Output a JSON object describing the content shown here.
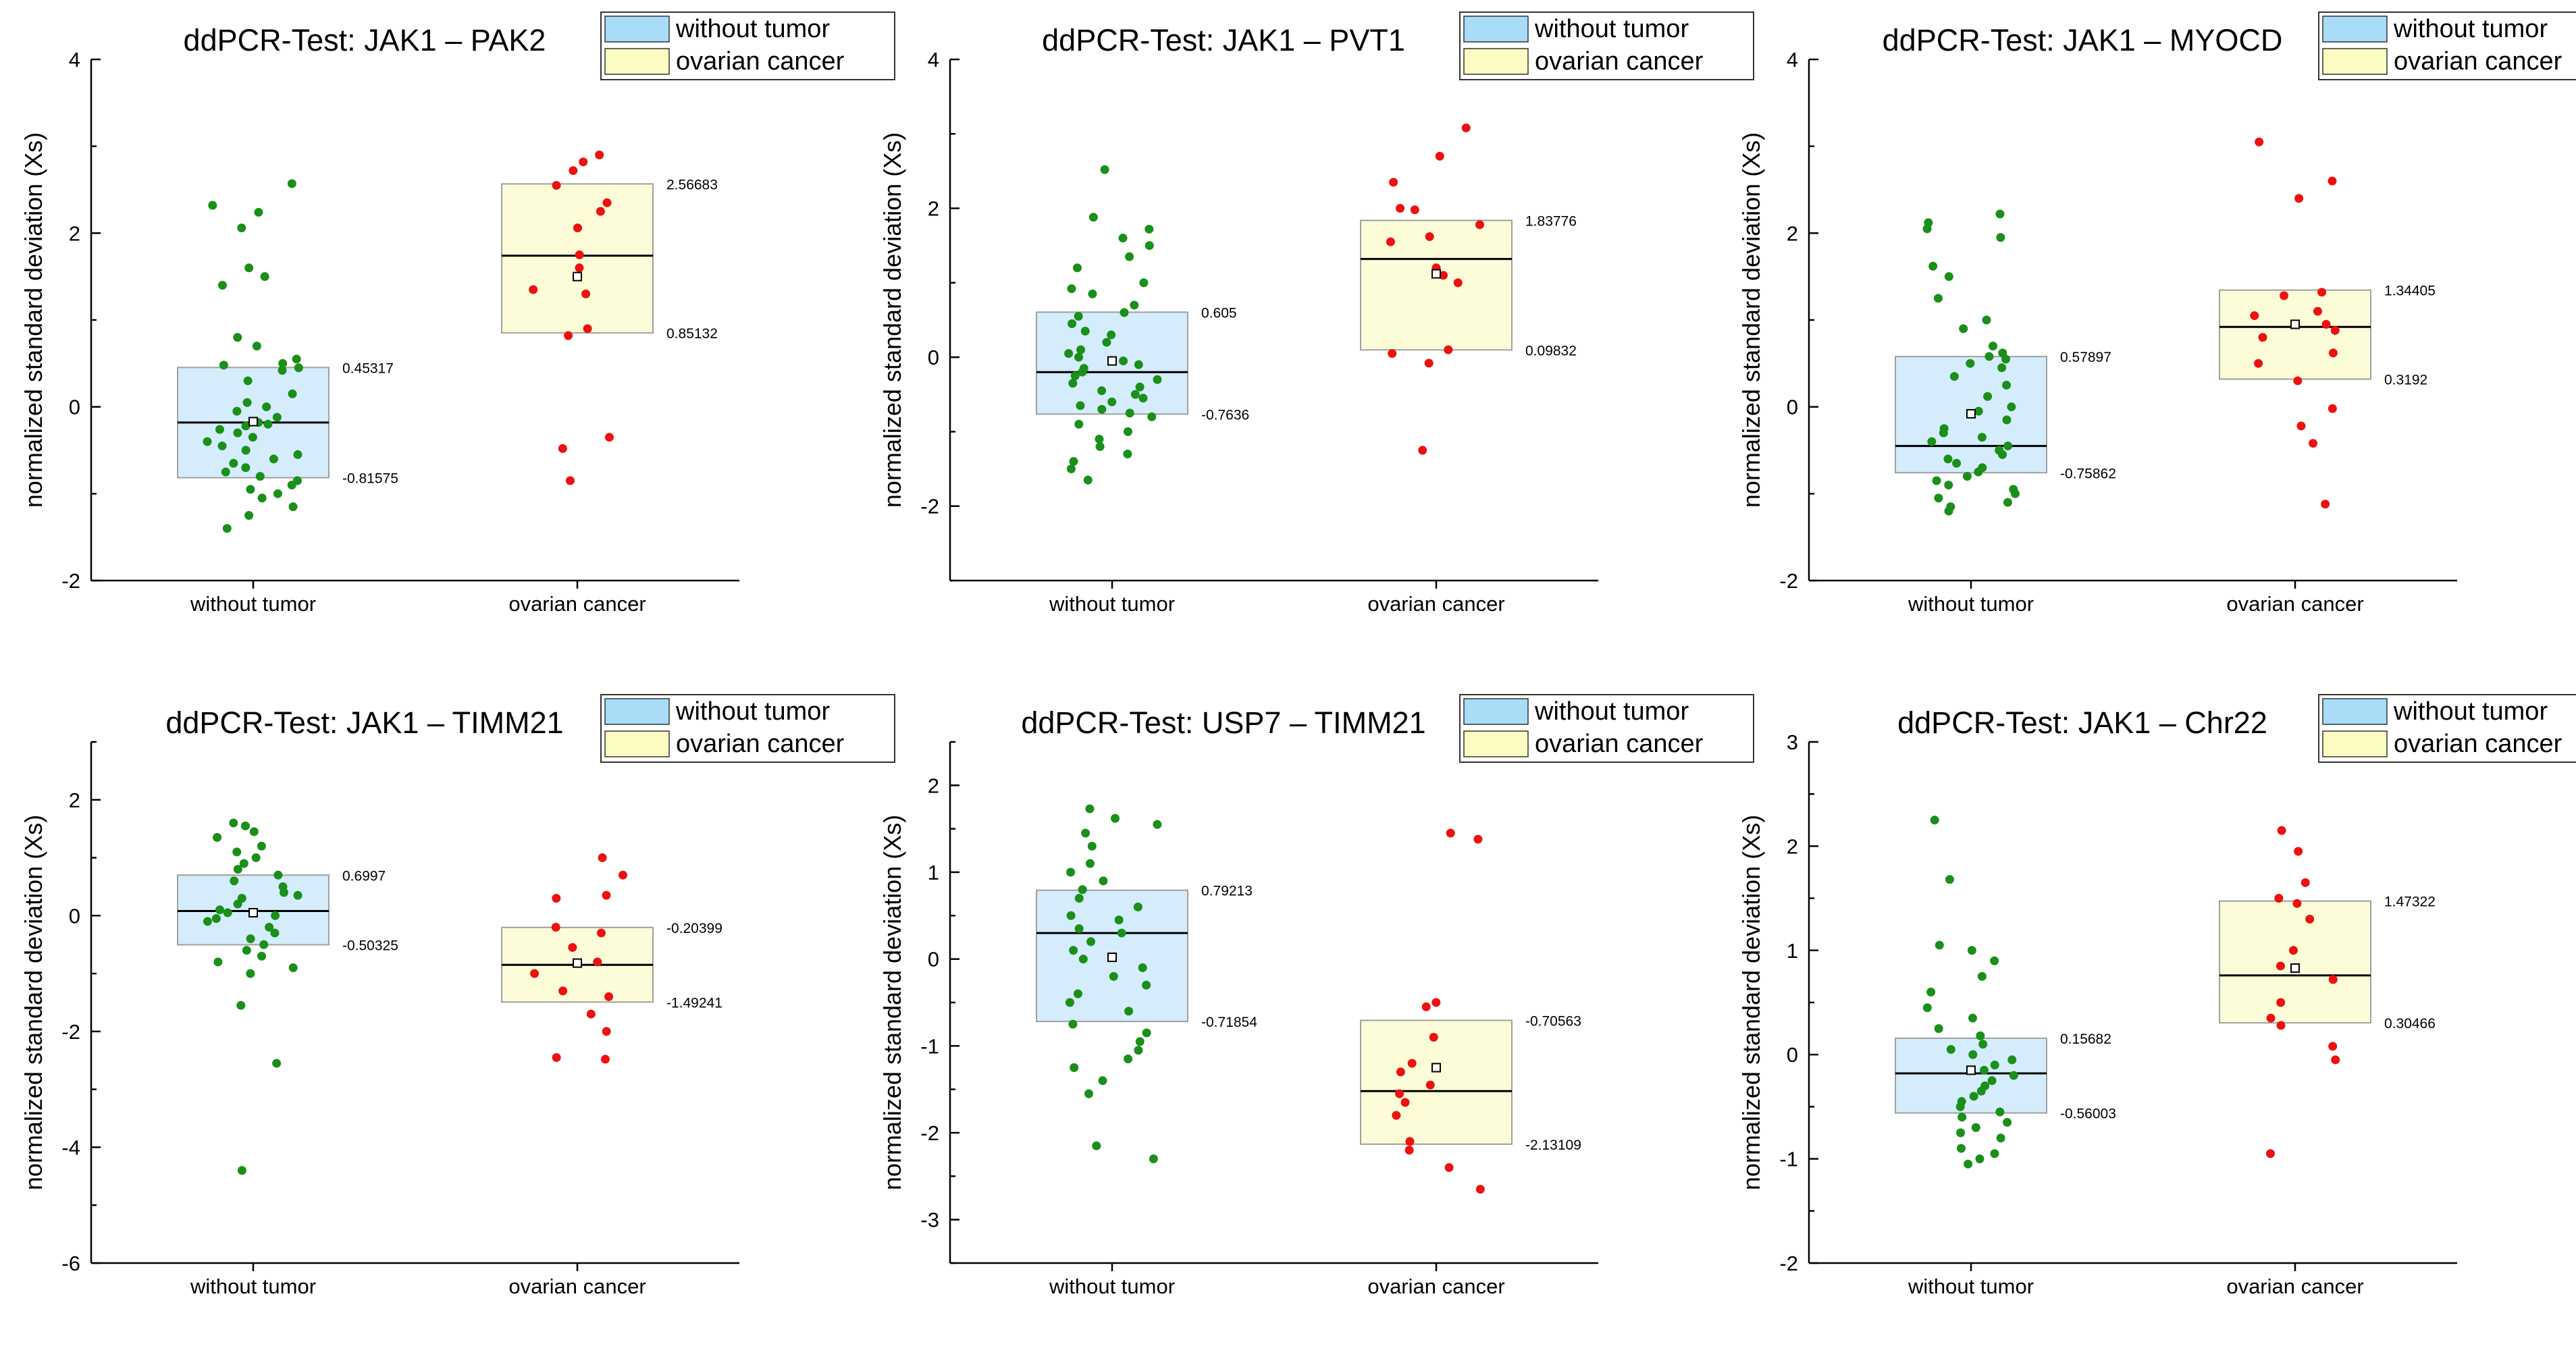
{
  "legend": {
    "items": [
      "without tumor",
      "ovarian cancer"
    ]
  },
  "colors": {
    "without_tumor_box": "#d4ecfb",
    "ovarian_cancer_box": "#fdfcd9",
    "box_edge": "#a0a0a0",
    "without_tumor_points": "#1a8f1a",
    "ovarian_cancer_points": "#ee1111",
    "legend_swatch_without_tumor": "#a9dcf7",
    "legend_swatch_ovarian_cancer": "#fcfbc2",
    "legend_border": "#333333"
  },
  "chart_data": [
    {
      "type": "box",
      "title": "ddPCR-Test: JAK1 – PAK2",
      "ylabel": "normalized standard deviation (Xs)",
      "ylim": [
        -2,
        4
      ],
      "yticks": [
        -2,
        0,
        2,
        4
      ],
      "categories": [
        "without tumor",
        "ovarian cancer"
      ],
      "groups": [
        {
          "name": "without tumor",
          "box_top": 0.45317,
          "box_bottom": -0.81575,
          "median": -0.18,
          "mean": -0.17,
          "top_label": "0.45317",
          "bottom_label": "-0.81575",
          "points": [
            2.57,
            2.32,
            2.24,
            2.06,
            1.6,
            1.5,
            1.4,
            0.8,
            0.7,
            0.55,
            0.5,
            0.48,
            0.45,
            0.42,
            0.3,
            0.15,
            0.05,
            0.0,
            -0.05,
            -0.12,
            -0.18,
            -0.2,
            -0.22,
            -0.26,
            -0.3,
            -0.35,
            -0.4,
            -0.45,
            -0.5,
            -0.55,
            -0.6,
            -0.65,
            -0.7,
            -0.75,
            -0.8,
            -0.85,
            -0.9,
            -0.95,
            -1.0,
            -1.05,
            -1.15,
            -1.25,
            -1.4
          ]
        },
        {
          "name": "ovarian cancer",
          "box_top": 2.56683,
          "box_bottom": 0.85132,
          "median": 1.74,
          "mean": 1.5,
          "top_label": "2.56683",
          "bottom_label": "0.85132",
          "points": [
            2.9,
            2.82,
            2.72,
            2.55,
            2.35,
            2.25,
            2.06,
            1.75,
            1.6,
            1.35,
            1.3,
            0.9,
            0.82,
            -0.35,
            -0.48,
            -0.85
          ]
        }
      ]
    },
    {
      "type": "box",
      "title": "ddPCR-Test: JAK1 – PVT1",
      "ylabel": "normalized standard deviation (Xs)",
      "ylim": [
        -3,
        4
      ],
      "yticks": [
        -2,
        0,
        2,
        4
      ],
      "categories": [
        "without tumor",
        "ovarian cancer"
      ],
      "groups": [
        {
          "name": "without tumor",
          "box_top": 0.605,
          "box_bottom": -0.7636,
          "median": -0.2,
          "mean": -0.05,
          "top_label": "0.605",
          "bottom_label": "-0.7636",
          "points": [
            2.52,
            1.88,
            1.72,
            1.6,
            1.5,
            1.35,
            1.2,
            1.0,
            0.92,
            0.85,
            0.7,
            0.6,
            0.55,
            0.45,
            0.35,
            0.3,
            0.2,
            0.1,
            0.05,
            0.0,
            -0.05,
            -0.1,
            -0.15,
            -0.2,
            -0.25,
            -0.3,
            -0.35,
            -0.4,
            -0.45,
            -0.5,
            -0.55,
            -0.6,
            -0.65,
            -0.7,
            -0.75,
            -0.8,
            -0.9,
            -1.0,
            -1.1,
            -1.2,
            -1.3,
            -1.4,
            -1.5,
            -1.65
          ]
        },
        {
          "name": "ovarian cancer",
          "box_top": 1.83776,
          "box_bottom": 0.09832,
          "median": 1.32,
          "mean": 1.12,
          "top_label": "1.83776",
          "bottom_label": "0.09832",
          "points": [
            3.08,
            2.7,
            2.35,
            2.0,
            1.98,
            1.78,
            1.62,
            1.55,
            1.2,
            1.1,
            1.0,
            0.1,
            0.05,
            -0.08,
            -1.25
          ]
        }
      ]
    },
    {
      "type": "box",
      "title": "ddPCR-Test: JAK1 – MYOCD",
      "ylabel": "normalized standard deviation (Xs)",
      "ylim": [
        -2,
        4
      ],
      "yticks": [
        -2,
        0,
        2,
        4
      ],
      "categories": [
        "without tumor",
        "ovarian cancer"
      ],
      "groups": [
        {
          "name": "without tumor",
          "box_top": 0.57897,
          "box_bottom": -0.75862,
          "median": -0.45,
          "mean": -0.08,
          "top_label": "0.57897",
          "bottom_label": "-0.75862",
          "points": [
            2.22,
            2.12,
            2.05,
            1.95,
            1.62,
            1.5,
            1.25,
            1.0,
            0.9,
            0.7,
            0.62,
            0.58,
            0.55,
            0.5,
            0.45,
            0.35,
            0.25,
            0.12,
            0.0,
            -0.05,
            -0.15,
            -0.25,
            -0.3,
            -0.35,
            -0.4,
            -0.45,
            -0.5,
            -0.55,
            -0.6,
            -0.65,
            -0.7,
            -0.75,
            -0.8,
            -0.85,
            -0.9,
            -0.95,
            -1.0,
            -1.05,
            -1.1,
            -1.15,
            -1.2
          ]
        },
        {
          "name": "ovarian cancer",
          "box_top": 1.34405,
          "box_bottom": 0.3192,
          "median": 0.92,
          "mean": 0.95,
          "top_label": "1.34405",
          "bottom_label": "0.3192",
          "points": [
            3.05,
            2.6,
            2.4,
            1.32,
            1.28,
            1.1,
            1.05,
            0.95,
            0.88,
            0.8,
            0.62,
            0.5,
            0.3,
            -0.02,
            -0.22,
            -0.42,
            -1.12
          ]
        }
      ]
    },
    {
      "type": "box",
      "title": "ddPCR-Test: JAK1 – TIMM21",
      "ylabel": "normalized standard deviation (Xs)",
      "ylim": [
        -6,
        3
      ],
      "yticks": [
        -6,
        -4,
        -2,
        0,
        2
      ],
      "categories": [
        "without tumor",
        "ovarian cancer"
      ],
      "groups": [
        {
          "name": "without tumor",
          "box_top": 0.6997,
          "box_bottom": -0.50325,
          "median": 0.08,
          "mean": 0.05,
          "top_label": "0.6997",
          "bottom_label": "-0.50325",
          "points": [
            1.6,
            1.55,
            1.45,
            1.35,
            1.2,
            1.1,
            1.0,
            0.9,
            0.8,
            0.7,
            0.6,
            0.5,
            0.4,
            0.35,
            0.3,
            0.2,
            0.1,
            0.05,
            0.0,
            -0.05,
            -0.1,
            -0.2,
            -0.3,
            -0.4,
            -0.5,
            -0.6,
            -0.7,
            -0.8,
            -0.9,
            -1.0,
            -1.55,
            -2.55,
            -4.4
          ]
        },
        {
          "name": "ovarian cancer",
          "box_top": -0.20399,
          "box_bottom": -1.49241,
          "median": -0.85,
          "mean": -0.82,
          "top_label": "-0.20399",
          "bottom_label": "-1.49241",
          "points": [
            1.0,
            0.7,
            0.35,
            0.3,
            -0.2,
            -0.3,
            -0.55,
            -0.8,
            -1.0,
            -1.3,
            -1.4,
            -1.7,
            -2.0,
            -2.45,
            -2.48
          ]
        }
      ]
    },
    {
      "type": "box",
      "title": "ddPCR-Test: USP7 – TIMM21",
      "ylabel": "normalized standard deviation (Xs)",
      "ylim": [
        -3.5,
        2.5
      ],
      "yticks": [
        -3,
        -2,
        -1,
        0,
        1,
        2
      ],
      "categories": [
        "without tumor",
        "ovarian cancer"
      ],
      "groups": [
        {
          "name": "without tumor",
          "box_top": 0.79213,
          "box_bottom": -0.71854,
          "median": 0.3,
          "mean": 0.02,
          "top_label": "0.79213",
          "bottom_label": "-0.71854",
          "points": [
            1.73,
            1.62,
            1.55,
            1.45,
            1.3,
            1.1,
            1.0,
            0.9,
            0.8,
            0.7,
            0.6,
            0.5,
            0.45,
            0.35,
            0.3,
            0.2,
            0.1,
            0.0,
            -0.1,
            -0.2,
            -0.3,
            -0.4,
            -0.5,
            -0.6,
            -0.75,
            -0.85,
            -0.95,
            -1.05,
            -1.15,
            -1.25,
            -1.4,
            -1.55,
            -2.15,
            -2.3
          ]
        },
        {
          "name": "ovarian cancer",
          "box_top": -0.70563,
          "box_bottom": -2.13109,
          "median": -1.52,
          "mean": -1.25,
          "top_label": "-0.70563",
          "bottom_label": "-2.13109",
          "points": [
            1.45,
            1.38,
            -0.5,
            -0.55,
            -0.9,
            -1.2,
            -1.3,
            -1.45,
            -1.55,
            -1.65,
            -1.8,
            -2.1,
            -2.2,
            -2.4,
            -2.65
          ]
        }
      ]
    },
    {
      "type": "box",
      "title": "ddPCR-Test: JAK1 – Chr22",
      "ylabel": "normalized standard deviation (Xs)",
      "ylim": [
        -2,
        3
      ],
      "yticks": [
        -2,
        -1,
        0,
        1,
        2,
        3
      ],
      "categories": [
        "without tumor",
        "ovarian cancer"
      ],
      "groups": [
        {
          "name": "without tumor",
          "box_top": 0.15682,
          "box_bottom": -0.56003,
          "median": -0.18,
          "mean": -0.15,
          "top_label": "0.15682",
          "bottom_label": "-0.56003",
          "points": [
            2.25,
            1.68,
            1.05,
            1.0,
            0.9,
            0.75,
            0.6,
            0.45,
            0.35,
            0.25,
            0.18,
            0.1,
            0.05,
            0.0,
            -0.05,
            -0.1,
            -0.15,
            -0.2,
            -0.25,
            -0.3,
            -0.35,
            -0.4,
            -0.45,
            -0.5,
            -0.55,
            -0.6,
            -0.65,
            -0.7,
            -0.75,
            -0.8,
            -0.9,
            -0.95,
            -1.0,
            -1.05
          ]
        },
        {
          "name": "ovarian cancer",
          "box_top": 1.47322,
          "box_bottom": 0.30466,
          "median": 0.76,
          "mean": 0.83,
          "top_label": "1.47322",
          "bottom_label": "0.30466",
          "points": [
            2.15,
            1.95,
            1.65,
            1.5,
            1.45,
            1.3,
            1.0,
            0.85,
            0.72,
            0.5,
            0.35,
            0.28,
            0.08,
            -0.05,
            -0.95
          ]
        }
      ]
    }
  ]
}
